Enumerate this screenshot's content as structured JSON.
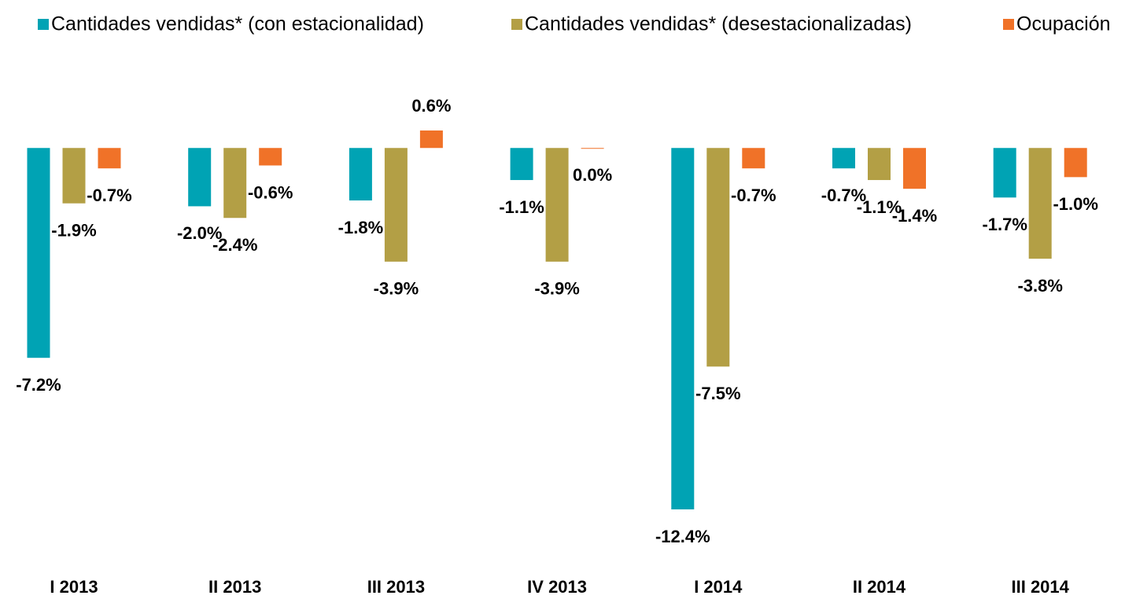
{
  "chart_data": {
    "type": "bar",
    "categories": [
      "I 2013",
      "II 2013",
      "III 2013",
      "IV 2013",
      "I 2014",
      "II 2014",
      "III 2014"
    ],
    "series": [
      {
        "name": "Cantidades vendidas* (con estacionalidad)",
        "color": "#00a3b4",
        "values": [
          -7.2,
          -2.0,
          -1.8,
          -1.1,
          -12.4,
          -0.7,
          -1.7
        ],
        "value_labels": [
          "-7.2%",
          "-2.0%",
          "-1.8%",
          "-1.1%",
          "-12.4%",
          "-0.7%",
          "-1.7%"
        ]
      },
      {
        "name": "Cantidades vendidas* (desestacionalizadas)",
        "color": "#b39f45",
        "values": [
          -1.9,
          -2.4,
          -3.9,
          -3.9,
          -7.5,
          -1.1,
          -3.8
        ],
        "value_labels": [
          "-1.9%",
          "-2.4%",
          "-3.9%",
          "-3.9%",
          "-7.5%",
          "-1.1%",
          "-3.8%"
        ]
      },
      {
        "name": "Ocupación",
        "color": "#f07228",
        "values": [
          -0.7,
          -0.6,
          0.6,
          0.0,
          -0.7,
          -1.4,
          -1.0
        ],
        "value_labels": [
          "-0.7%",
          "-0.6%",
          "0.6%",
          "0.0%",
          "-0.7%",
          "-1.4%",
          "-1.0%"
        ]
      }
    ],
    "legend": "top"
  }
}
